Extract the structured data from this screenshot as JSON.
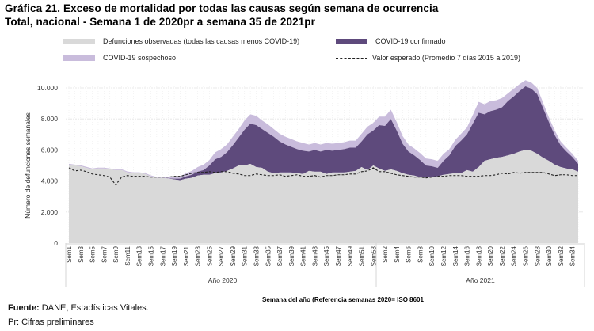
{
  "title_line1": "Gráfica 21. Exceso de mortalidad por todas las causas según semana de ocurrencia",
  "title_line2": "Total, nacional - Semana 1 de 2020pr a semana 35 de 2021pr",
  "footer": {
    "source_label": "Fuente:",
    "source_text": " DANE, Estadísticas Vitales.",
    "note": "Pr: Cifras preliminares"
  },
  "chart_data": {
    "type": "area",
    "title": "Exceso de mortalidad por todas las causas según semana de ocurrencia",
    "xlabel": "Semana del año (Referencia semanas 2020= ISO 8601",
    "ylabel": "Número de defunciones semanales",
    "ylim": [
      0,
      10000
    ],
    "yticks": [
      "0",
      "2.000",
      "4.000",
      "6.000",
      "8.000",
      "10.000"
    ],
    "ytick_values": [
      0,
      2000,
      4000,
      6000,
      8000,
      10000
    ],
    "grid": true,
    "legend_position": "top",
    "groups": [
      {
        "label": "Año 2020",
        "weeks": 53
      },
      {
        "label": "Año 2021",
        "weeks": 35
      }
    ],
    "colors": {
      "observed": "#d9d9d9",
      "confirmed": "#5e4a7c",
      "suspected": "#c9bcdc",
      "expected": "#222222"
    },
    "legend": [
      {
        "key": "observed",
        "label": "Defunciones observadas (todas las causas menos COVID-19)",
        "style": "area"
      },
      {
        "key": "confirmed",
        "label": "COVID-19 confirmado",
        "style": "area"
      },
      {
        "key": "suspected",
        "label": "COVID-19 sospechoso",
        "style": "area"
      },
      {
        "key": "expected",
        "label": "Valor esperado (Promedio 7 días 2015 a 2019)",
        "style": "dashed"
      }
    ],
    "series": [
      {
        "name": "Defunciones observadas (todas las causas menos COVID-19)",
        "key": "observed",
        "values": [
          5050,
          5000,
          4950,
          4850,
          4750,
          4800,
          4800,
          4750,
          4700,
          4700,
          4550,
          4500,
          4500,
          4450,
          4300,
          4200,
          4200,
          4150,
          4100,
          4050,
          4150,
          4200,
          4350,
          4400,
          4400,
          4500,
          4550,
          4650,
          4800,
          5000,
          5000,
          5100,
          4900,
          4850,
          4600,
          4500,
          4550,
          4550,
          4550,
          4500,
          4450,
          4650,
          4600,
          4600,
          4450,
          4550,
          4550,
          4550,
          4600,
          4650,
          4900,
          4700,
          5000,
          4800,
          4650,
          4750,
          4650,
          4500,
          4400,
          4350,
          4250,
          4200,
          4250,
          4300,
          4400,
          4450,
          4500,
          4500,
          4700,
          4600,
          4900,
          5300,
          5400,
          5500,
          5550,
          5650,
          5750,
          5900,
          6000,
          5950,
          5750,
          5500,
          5300,
          5050,
          4900,
          4800,
          4750,
          4600
        ]
      },
      {
        "name": "COVID-19 confirmado",
        "key": "confirmed",
        "values": [
          0,
          0,
          0,
          0,
          0,
          0,
          0,
          0,
          0,
          0,
          0,
          0,
          0,
          0,
          0,
          0,
          0,
          10,
          50,
          100,
          150,
          200,
          250,
          300,
          600,
          900,
          1000,
          1200,
          1500,
          1800,
          2300,
          2600,
          2700,
          2500,
          2500,
          2350,
          2000,
          1800,
          1650,
          1550,
          1500,
          1250,
          1400,
          1300,
          1550,
          1400,
          1450,
          1500,
          1550,
          1500,
          1650,
          2300,
          2250,
          2800,
          2900,
          3250,
          2600,
          1900,
          1500,
          1300,
          1100,
          800,
          700,
          550,
          900,
          1200,
          1750,
          2100,
          2300,
          3100,
          3500,
          3000,
          3100,
          3100,
          3200,
          3500,
          3700,
          3900,
          4100,
          4000,
          3850,
          3200,
          2500,
          1900,
          1400,
          1100,
          800,
          500
        ]
      },
      {
        "name": "COVID-19 sospechoso",
        "key": "suspected",
        "values": [
          60,
          60,
          60,
          60,
          60,
          60,
          60,
          60,
          60,
          60,
          60,
          60,
          60,
          60,
          60,
          60,
          60,
          80,
          100,
          150,
          200,
          250,
          300,
          350,
          350,
          450,
          500,
          500,
          550,
          550,
          600,
          600,
          600,
          550,
          550,
          500,
          500,
          500,
          500,
          500,
          500,
          450,
          450,
          450,
          450,
          450,
          450,
          450,
          450,
          450,
          500,
          500,
          500,
          550,
          600,
          600,
          550,
          500,
          450,
          450,
          450,
          450,
          450,
          450,
          450,
          400,
          400,
          450,
          450,
          550,
          700,
          650,
          650,
          600,
          600,
          500,
          500,
          450,
          400,
          400,
          400,
          350,
          300,
          300,
          250,
          250,
          200,
          200
        ]
      },
      {
        "name": "Valor esperado (Promedio 7 días 2015 a 2019)",
        "key": "expected",
        "values": [
          4850,
          4650,
          4700,
          4600,
          4450,
          4400,
          4350,
          4250,
          3750,
          4250,
          4350,
          4300,
          4300,
          4300,
          4250,
          4250,
          4250,
          4250,
          4300,
          4300,
          4400,
          4500,
          4550,
          4550,
          4600,
          4550,
          4600,
          4600,
          4500,
          4450,
          4350,
          4350,
          4450,
          4400,
          4350,
          4350,
          4400,
          4300,
          4350,
          4400,
          4300,
          4300,
          4350,
          4250,
          4350,
          4350,
          4400,
          4400,
          4450,
          4450,
          4600,
          4650,
          4850,
          4600,
          4600,
          4500,
          4400,
          4350,
          4300,
          4250,
          4250,
          4200,
          4250,
          4300,
          4300,
          4350,
          4350,
          4350,
          4300,
          4300,
          4300,
          4350,
          4350,
          4400,
          4500,
          4450,
          4550,
          4500,
          4550,
          4550,
          4550,
          4550,
          4450,
          4350,
          4400,
          4400,
          4350,
          4350
        ]
      }
    ],
    "categories_2020": [
      "Sem1",
      "Sem2",
      "Sem3",
      "Sem4",
      "Sem5",
      "Sem6",
      "Sem7",
      "Sem8",
      "Sem9",
      "Sem10",
      "Sem11",
      "Sem12",
      "Sem13",
      "Sem14",
      "Sem15",
      "Sem16",
      "Sem17",
      "Sem18",
      "Sem19",
      "Sem20",
      "Sem21",
      "Sem22",
      "Sem23",
      "Sem24",
      "Sem25",
      "Sem26",
      "Sem27",
      "Sem28",
      "Sem29",
      "Sem30",
      "Sem31",
      "Sem32",
      "Sem33",
      "Sem34",
      "Sem35",
      "Sem36",
      "Sem37",
      "Sem38",
      "Sem39",
      "Sem40",
      "Sem41",
      "Sem42",
      "Sem43",
      "Sem44",
      "Sem45",
      "Sem46",
      "Sem47",
      "Sem48",
      "Sem49",
      "Sem50",
      "Sem51",
      "Sem52",
      "Sem53"
    ],
    "categories_2021": [
      "Sem1",
      "Sem2",
      "Sem3",
      "Sem4",
      "Sem5",
      "Sem6",
      "Sem7",
      "Sem8",
      "Sem9",
      "Sem10",
      "Sem11",
      "Sem12",
      "Sem13",
      "Sem14",
      "Sem15",
      "Sem16",
      "Sem17",
      "Sem18",
      "Sem19",
      "Sem20",
      "Sem21",
      "Sem22",
      "Sem23",
      "Sem24",
      "Sem25",
      "Sem26",
      "Sem27",
      "Sem28",
      "Sem29",
      "Sem30",
      "Sem31",
      "Sem32",
      "Sem33",
      "Sem34",
      "Sem35"
    ],
    "tick_labels_shown_2020": [
      "Sem1",
      "Sem3",
      "Sem5",
      "Sem7",
      "Sem9",
      "Sem11",
      "Sem13",
      "Sem15",
      "Sem17",
      "Sem19",
      "Sem21",
      "Sem23",
      "Sem25",
      "Sem27",
      "Sem29",
      "Sem31",
      "Sem33",
      "Sem35",
      "Sem37",
      "Sem39",
      "Sem41",
      "Sem43",
      "Sem45",
      "Sem47",
      "Sem49",
      "Sem51",
      "Sem53"
    ],
    "tick_labels_shown_2021": [
      "Sem2",
      "Sem4",
      "Sem6",
      "Sem8",
      "Sem10",
      "Sem12",
      "Sem14",
      "Sem16",
      "Sem18",
      "Sem20",
      "Sem22",
      "Sem24",
      "Sem26",
      "Sem28",
      "Sem30",
      "Sem32",
      "Sem34"
    ]
  }
}
